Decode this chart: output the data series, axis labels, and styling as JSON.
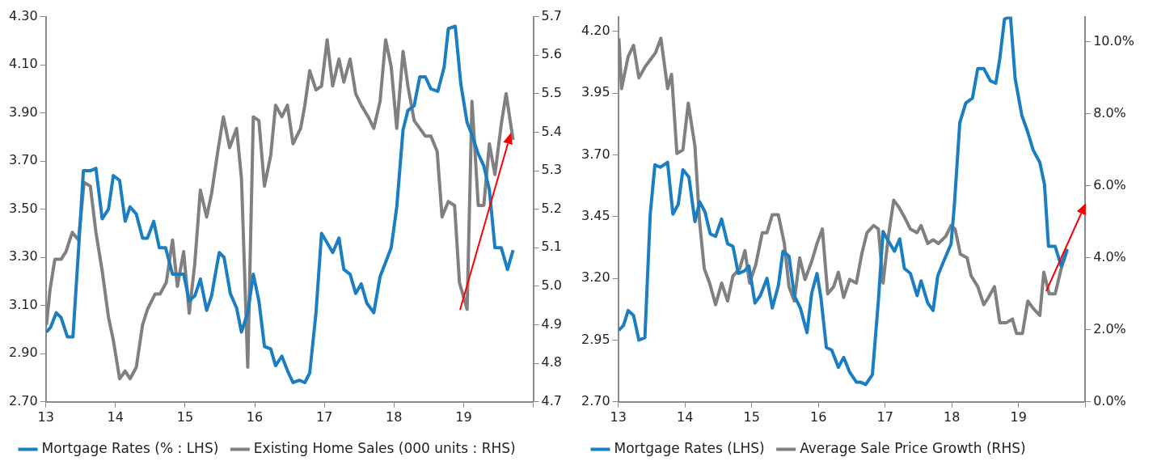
{
  "chart_data": [
    {
      "type": "line",
      "legend": "bottom",
      "marker": "none",
      "line_style": "solid",
      "grid": false,
      "xlim": [
        13,
        20
      ],
      "xticks": [
        13,
        14,
        15,
        16,
        17,
        18,
        19,
        {
          "value": 20,
          "label": null
        }
      ],
      "ylim": [
        2.7,
        4.3
      ],
      "yticks": [
        {
          "value": 2.7,
          "label": "2.70"
        },
        {
          "value": 2.9,
          "label": "2.90"
        },
        {
          "value": 3.1,
          "label": "3.10"
        },
        {
          "value": 3.3,
          "label": "3.30"
        },
        {
          "value": 3.5,
          "label": "3.50"
        },
        {
          "value": 3.7,
          "label": "3.70"
        },
        {
          "value": 3.9,
          "label": "3.90"
        },
        {
          "value": 4.1,
          "label": "4.10"
        },
        {
          "value": 4.3,
          "label": "4.30"
        }
      ],
      "y2lim": [
        4.7,
        5.7
      ],
      "y2ticks": [
        4.7,
        4.8,
        4.9,
        {
          "value": 5,
          "label": "5.0"
        },
        5.1,
        5.2,
        5.3,
        5.4,
        5.5,
        5.6,
        5.7
      ],
      "series": [
        {
          "name": "Mortgage Rates (% : LHS)",
          "color": "#1b7dc2",
          "x": [
            13.01,
            13.07,
            13.15,
            13.22,
            13.31,
            13.39,
            13.47,
            13.54,
            13.64,
            13.72,
            13.81,
            13.9,
            13.97,
            14.06,
            14.14,
            14.21,
            14.3,
            14.39,
            14.46,
            14.55,
            14.63,
            14.72,
            14.82,
            14.89,
            14.98,
            15.06,
            15.14,
            15.22,
            15.31,
            15.38,
            15.49,
            15.56,
            15.65,
            15.74,
            15.81,
            15.9,
            15.98,
            16.06,
            16.14,
            16.23,
            16.3,
            16.39,
            16.47,
            16.55,
            16.64,
            16.72,
            16.79,
            16.88,
            16.96,
            17.04,
            17.12,
            17.21,
            17.28,
            17.37,
            17.45,
            17.53,
            17.61,
            17.71,
            17.8,
            17.88,
            17.96,
            18.04,
            18.13,
            18.2,
            18.29,
            18.37,
            18.45,
            18.53,
            18.63,
            18.72,
            18.78,
            18.88,
            18.96,
            19.05,
            19.12,
            19.21,
            19.29,
            19.37,
            19.45,
            19.54,
            19.63,
            19.71
          ],
          "values": [
            2.99,
            3.01,
            3.07,
            3.05,
            2.97,
            2.97,
            3.33,
            3.66,
            3.66,
            3.67,
            3.46,
            3.5,
            3.64,
            3.62,
            3.45,
            3.51,
            3.48,
            3.38,
            3.38,
            3.45,
            3.34,
            3.34,
            3.23,
            3.23,
            3.23,
            3.12,
            3.14,
            3.21,
            3.08,
            3.14,
            3.32,
            3.3,
            3.15,
            3.09,
            2.99,
            3.07,
            3.23,
            3.12,
            2.93,
            2.92,
            2.85,
            2.89,
            2.83,
            2.78,
            2.79,
            2.78,
            2.82,
            3.07,
            3.4,
            3.36,
            3.32,
            3.38,
            3.25,
            3.23,
            3.15,
            3.19,
            3.11,
            3.07,
            3.22,
            3.28,
            3.34,
            3.51,
            3.83,
            3.91,
            3.93,
            4.05,
            4.05,
            4,
            3.99,
            4.09,
            4.25,
            4.26,
            4.02,
            3.86,
            3.81,
            3.73,
            3.68,
            3.58,
            3.34,
            3.34,
            3.25,
            3.33
          ]
        },
        {
          "name": "Existing Home Sales (000 units : RHS)",
          "color": "#808083",
          "axis": "y2",
          "x": [
            13.01,
            13.06,
            13.13,
            13.22,
            13.29,
            13.38,
            13.47,
            13.55,
            13.64,
            13.72,
            13.81,
            13.9,
            13.97,
            14.06,
            14.14,
            14.21,
            14.3,
            14.39,
            14.46,
            14.57,
            14.64,
            14.73,
            14.82,
            14.89,
            14.98,
            15.06,
            15.14,
            15.22,
            15.31,
            15.38,
            15.47,
            15.55,
            15.64,
            15.74,
            15.81,
            15.9,
            15.98,
            16.06,
            16.14,
            16.23,
            16.3,
            16.39,
            16.47,
            16.55,
            16.66,
            16.72,
            16.79,
            16.88,
            16.96,
            17.04,
            17.12,
            17.21,
            17.28,
            17.37,
            17.45,
            17.53,
            17.63,
            17.71,
            17.8,
            17.88,
            17.96,
            18.04,
            18.13,
            18.2,
            18.29,
            18.37,
            18.45,
            18.53,
            18.62,
            18.69,
            18.78,
            18.87,
            18.94,
            19.05,
            19.12,
            19.21,
            19.29,
            19.37,
            19.45,
            19.54,
            19.61,
            19.71
          ],
          "values": [
            4.9,
            4.99,
            5.07,
            5.07,
            5.09,
            5.14,
            5.12,
            5.27,
            5.26,
            5.14,
            5.04,
            4.92,
            4.86,
            4.76,
            4.78,
            4.76,
            4.79,
            4.9,
            4.94,
            4.98,
            4.98,
            5.01,
            5.12,
            5,
            5.09,
            4.93,
            5.06,
            5.25,
            5.18,
            5.24,
            5.35,
            5.44,
            5.36,
            5.41,
            5.28,
            4.79,
            5.44,
            5.43,
            5.26,
            5.34,
            5.47,
            5.44,
            5.47,
            5.37,
            5.41,
            5.47,
            5.56,
            5.51,
            5.52,
            5.64,
            5.52,
            5.59,
            5.53,
            5.59,
            5.5,
            5.47,
            5.44,
            5.41,
            5.48,
            5.64,
            5.57,
            5.41,
            5.61,
            5.52,
            5.43,
            5.41,
            5.39,
            5.39,
            5.35,
            5.18,
            5.22,
            5.21,
            5.01,
            4.94,
            5.48,
            5.21,
            5.21,
            5.37,
            5.29,
            5.42,
            5.5,
            5.38
          ]
        }
      ]
    },
    {
      "type": "line",
      "legend": "bottom",
      "marker": "none",
      "line_style": "solid",
      "grid": false,
      "xlim": [
        13,
        20
      ],
      "xticks": [
        13,
        14,
        15,
        16,
        17,
        18,
        19,
        {
          "value": 20,
          "label": null
        }
      ],
      "ylim": [
        2.7,
        4.26
      ],
      "yticks": [
        {
          "value": 2.7,
          "label": "2.70"
        },
        2.95,
        {
          "value": 3.2,
          "label": "3.20"
        },
        3.45,
        {
          "value": 3.7,
          "label": "3.70"
        },
        3.95,
        {
          "value": 4.2,
          "label": "4.20"
        }
      ],
      "y2lim": [
        0,
        10.7
      ],
      "y2ticks": [
        {
          "value": 0,
          "label": "0.0%"
        },
        {
          "value": 2,
          "label": "2.0%"
        },
        {
          "value": 4,
          "label": "4.0%"
        },
        {
          "value": 6,
          "label": "6.0%"
        },
        {
          "value": 8,
          "label": "8.0%"
        },
        {
          "value": 10,
          "label": "10.0%"
        }
      ],
      "series": [
        {
          "name": "Mortgage Rates (LHS)",
          "color": "#1b7dc2",
          "x": [
            13.01,
            13.08,
            13.15,
            13.23,
            13.31,
            13.4,
            13.48,
            13.55,
            13.63,
            13.74,
            13.82,
            13.9,
            13.97,
            14.06,
            14.15,
            14.22,
            14.3,
            14.38,
            14.46,
            14.55,
            14.64,
            14.72,
            14.8,
            14.89,
            14.96,
            15.05,
            15.13,
            15.23,
            15.31,
            15.4,
            15.47,
            15.56,
            15.64,
            15.73,
            15.83,
            15.9,
            15.98,
            16.04,
            16.12,
            16.2,
            16.3,
            16.38,
            16.47,
            16.57,
            16.63,
            16.71,
            16.81,
            16.9,
            16.97,
            17.03,
            17.14,
            17.22,
            17.29,
            17.38,
            17.48,
            17.54,
            17.64,
            17.72,
            17.79,
            17.88,
            17.99,
            18.04,
            18.12,
            18.21,
            18.31,
            18.39,
            18.48,
            18.58,
            18.66,
            18.72,
            18.79,
            18.88,
            18.95,
            19.05,
            19.13,
            19.22,
            19.32,
            19.39,
            19.45,
            19.55,
            19.64,
            19.73
          ],
          "values": [
            2.99,
            3.01,
            3.07,
            3.05,
            2.95,
            2.96,
            3.46,
            3.66,
            3.65,
            3.67,
            3.46,
            3.5,
            3.64,
            3.61,
            3.43,
            3.51,
            3.47,
            3.38,
            3.37,
            3.44,
            3.34,
            3.33,
            3.22,
            3.23,
            3.25,
            3.1,
            3.13,
            3.2,
            3.08,
            3.17,
            3.31,
            3.29,
            3.13,
            3.08,
            2.98,
            3.14,
            3.22,
            3.12,
            2.92,
            2.91,
            2.84,
            2.88,
            2.82,
            2.78,
            2.78,
            2.77,
            2.81,
            3.11,
            3.39,
            3.36,
            3.31,
            3.36,
            3.24,
            3.22,
            3.13,
            3.19,
            3.1,
            3.07,
            3.21,
            3.27,
            3.34,
            3.5,
            3.83,
            3.91,
            3.93,
            4.05,
            4.05,
            4,
            3.99,
            4.09,
            4.25,
            4.26,
            4.01,
            3.86,
            3.8,
            3.72,
            3.67,
            3.58,
            3.33,
            3.33,
            3.25,
            3.32
          ]
        },
        {
          "name": "Average Sale Price Growth (RHS)",
          "color": "#808083",
          "axis": "y2",
          "x": [
            13.01,
            13.05,
            13.15,
            13.23,
            13.31,
            13.4,
            13.48,
            13.56,
            13.64,
            13.74,
            13.8,
            13.88,
            13.97,
            14.05,
            14.15,
            14.22,
            14.29,
            14.37,
            14.46,
            14.55,
            14.64,
            14.72,
            14.82,
            14.9,
            14.97,
            15.06,
            15.16,
            15.23,
            15.31,
            15.4,
            15.49,
            15.56,
            15.64,
            15.72,
            15.8,
            15.9,
            15.98,
            16.06,
            16.14,
            16.23,
            16.3,
            16.38,
            16.47,
            16.57,
            16.65,
            16.73,
            16.83,
            16.9,
            16.97,
            17.05,
            17.13,
            17.21,
            17.3,
            17.38,
            17.48,
            17.54,
            17.64,
            17.72,
            17.8,
            17.91,
            17.99,
            18.05,
            18.13,
            18.23,
            18.29,
            18.39,
            18.48,
            18.55,
            18.64,
            18.72,
            18.82,
            18.91,
            18.97,
            19.06,
            19.14,
            19.22,
            19.32,
            19.38,
            19.46,
            19.55,
            19.64,
            19.73
          ],
          "values": [
            10.1,
            8.7,
            9.6,
            9.9,
            9,
            9.3,
            9.5,
            9.7,
            10.1,
            8.7,
            9.1,
            6.9,
            7,
            8.3,
            7.1,
            5,
            3.7,
            3.3,
            2.7,
            3.3,
            2.8,
            3.5,
            3.7,
            4.2,
            3.3,
            3.8,
            4.7,
            4.7,
            5.2,
            5.2,
            4.4,
            3.2,
            2.8,
            4,
            3.4,
            3.9,
            4.4,
            4.8,
            3,
            3.2,
            3.6,
            2.9,
            3.4,
            3.3,
            4.1,
            4.7,
            4.9,
            4.8,
            3.3,
            4.6,
            5.6,
            5.4,
            5.1,
            4.8,
            4.7,
            4.9,
            4.4,
            4.5,
            4.4,
            4.6,
            4.9,
            4.8,
            4.1,
            4,
            3.5,
            3.2,
            2.7,
            2.9,
            3.2,
            2.2,
            2.2,
            2.3,
            1.9,
            1.9,
            2.8,
            2.6,
            2.4,
            3.6,
            3,
            3,
            3.7,
            4.2
          ]
        }
      ]
    }
  ]
}
